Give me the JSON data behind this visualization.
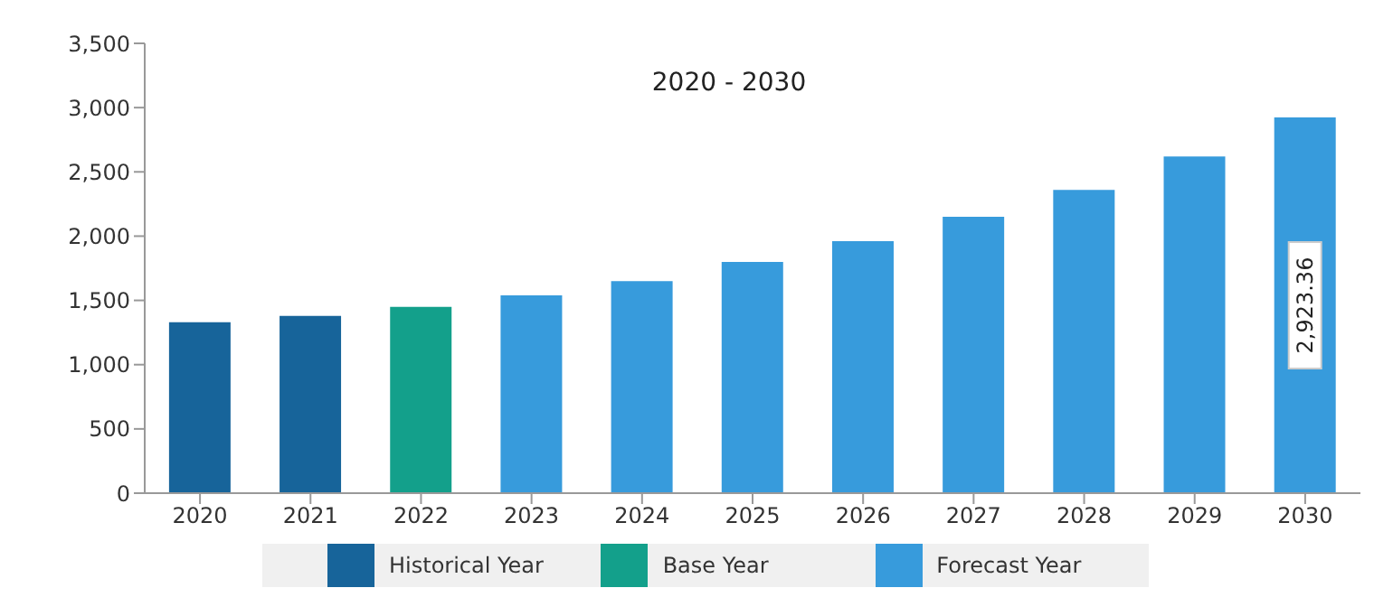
{
  "chart_data": {
    "type": "bar",
    "title": "2020 - 2030",
    "categories": [
      "2020",
      "2021",
      "2022",
      "2023",
      "2024",
      "2025",
      "2026",
      "2027",
      "2028",
      "2029",
      "2030"
    ],
    "series": [
      {
        "name": "Historical Year",
        "color": "#17649a",
        "values": [
          1330,
          1380,
          null,
          null,
          null,
          null,
          null,
          null,
          null,
          null,
          null
        ]
      },
      {
        "name": "Base Year",
        "color": "#13a08b",
        "values": [
          null,
          null,
          1450,
          null,
          null,
          null,
          null,
          null,
          null,
          null,
          null
        ]
      },
      {
        "name": "Forecast Year",
        "color": "#379bdc",
        "values": [
          null,
          null,
          null,
          1540,
          1650,
          1800,
          1960,
          2150,
          2360,
          2620,
          2923.36
        ],
        "value_labels": [
          null,
          null,
          null,
          null,
          null,
          null,
          null,
          null,
          null,
          null,
          "2,923.36"
        ]
      }
    ],
    "stacked": true,
    "ylim": [
      0,
      3500
    ],
    "yticks": [
      0,
      500,
      {
        "value": 1000,
        "label": "1,000"
      },
      {
        "value": 1500,
        "label": "1,500"
      },
      {
        "value": 2000,
        "label": "2,000"
      },
      {
        "value": 2500,
        "label": "2,500"
      },
      {
        "value": 3000,
        "label": "3,000"
      },
      {
        "value": 3500,
        "label": "3,500"
      }
    ],
    "legend": "bottom",
    "grid": false
  }
}
